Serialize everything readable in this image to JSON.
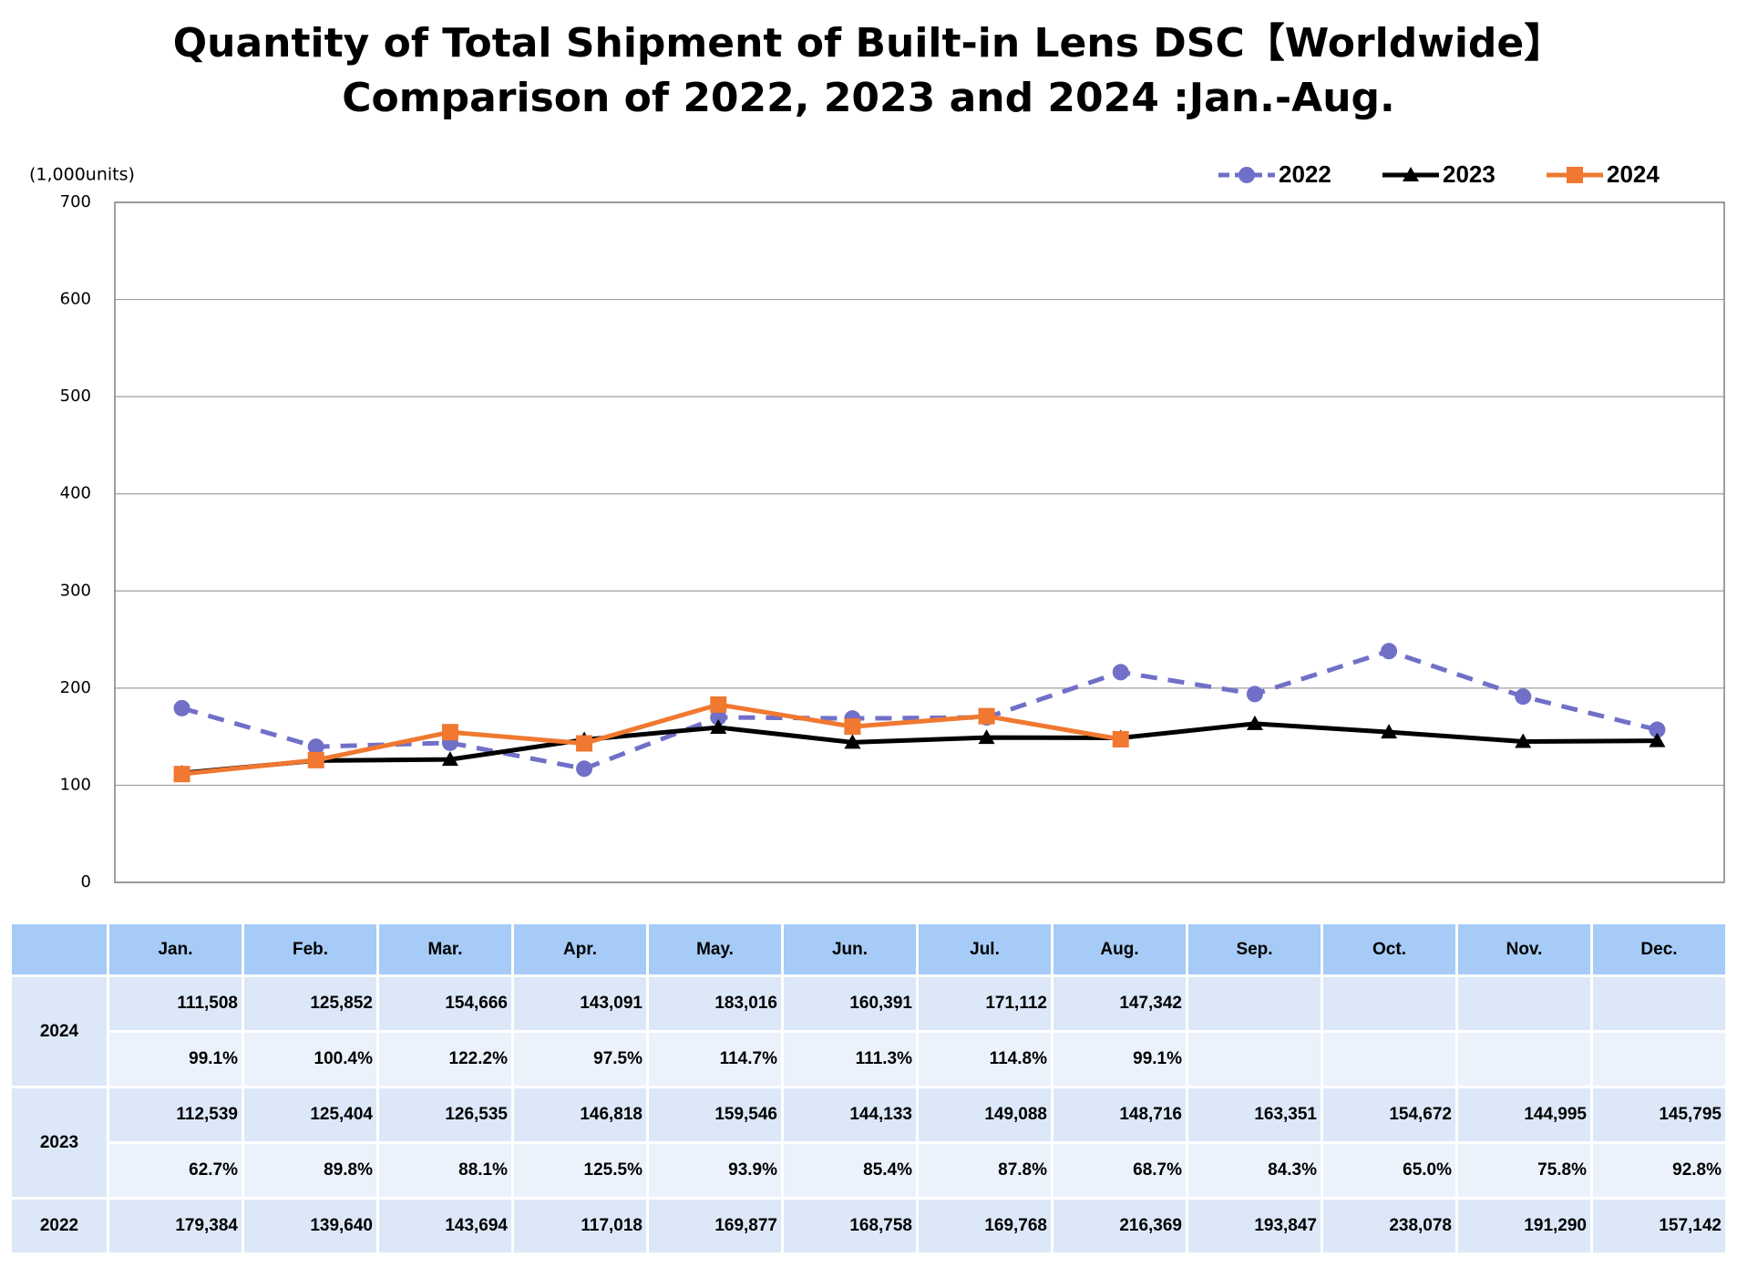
{
  "chart_data": {
    "type": "line",
    "title": "Quantity of Total Shipment of Built-in Lens DSC【Worldwide】",
    "subtitle": "Comparison of 2022, 2023 and 2024 :Jan.-Aug.",
    "y_label": "(1,000units)",
    "categories": [
      "Jan.",
      "Feb.",
      "Mar.",
      "Apr.",
      "May.",
      "Jun.",
      "Jul.",
      "Aug.",
      "Sep.",
      "Oct.",
      "Nov.",
      "Dec."
    ],
    "ylim": [
      0,
      700
    ],
    "yticks": [
      0,
      100,
      200,
      300,
      400,
      500,
      600,
      700
    ],
    "grid": true,
    "legend": "top-right",
    "series": [
      {
        "name": "2022",
        "color": "#7070c8",
        "style": "dashed",
        "marker": "circle",
        "values": [
          179.384,
          139.64,
          143.694,
          117.018,
          169.877,
          168.758,
          169.768,
          216.369,
          193.847,
          238.078,
          191.29,
          157.142
        ],
        "value_labels": [
          "179,384",
          "139,640",
          "143,694",
          "117,018",
          "169,877",
          "168,758",
          "169,768",
          "216,369",
          "193,847",
          "238,078",
          "191,290",
          "157,142"
        ]
      },
      {
        "name": "2023",
        "color": "#000000",
        "style": "solid",
        "marker": "triangle",
        "values": [
          112.539,
          125.404,
          126.535,
          146.818,
          159.546,
          144.133,
          149.088,
          148.716,
          163.351,
          154.672,
          144.995,
          145.795
        ],
        "value_labels": [
          "112,539",
          "125,404",
          "126,535",
          "146,818",
          "159,546",
          "144,133",
          "149,088",
          "148,716",
          "163,351",
          "154,672",
          "144,995",
          "145,795"
        ],
        "ratio_labels": [
          "62.7%",
          "89.8%",
          "88.1%",
          "125.5%",
          "93.9%",
          "85.4%",
          "87.8%",
          "68.7%",
          "84.3%",
          "65.0%",
          "75.8%",
          "92.8%"
        ]
      },
      {
        "name": "2024",
        "color": "#f07830",
        "style": "solid",
        "marker": "square",
        "values": [
          111.508,
          125.852,
          154.666,
          143.091,
          183.016,
          160.391,
          171.112,
          147.342,
          null,
          null,
          null,
          null
        ],
        "value_labels": [
          "111,508",
          "125,852",
          "154,666",
          "143,091",
          "183,016",
          "160,391",
          "171,112",
          "147,342",
          null,
          null,
          null,
          null
        ],
        "ratio_labels": [
          "99.1%",
          "100.4%",
          "122.2%",
          "97.5%",
          "114.7%",
          "111.3%",
          "114.8%",
          "99.1%",
          null,
          null,
          null,
          null
        ]
      }
    ]
  }
}
